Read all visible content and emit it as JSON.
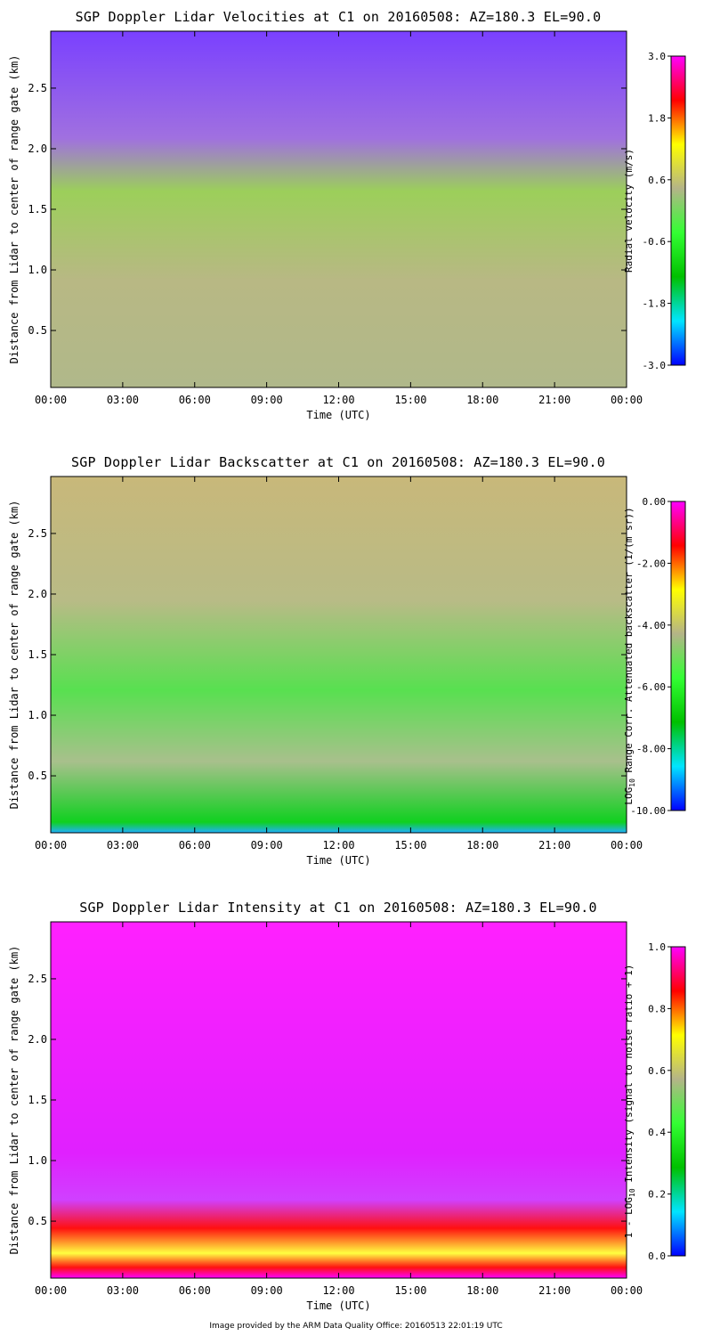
{
  "chart_data": [
    {
      "type": "heatmap",
      "title": "SGP Doppler Lidar Velocities at C1 on 20160508: AZ=180.3 EL=90.0",
      "xlabel": "Time (UTC)",
      "ylabel": "Distance from Lidar to center of range gate (km)",
      "xticks": [
        "00:00",
        "03:00",
        "06:00",
        "09:00",
        "12:00",
        "15:00",
        "18:00",
        "21:00",
        "00:00"
      ],
      "xlim": [
        0,
        24
      ],
      "yticks": [
        0.5,
        1.0,
        1.5,
        2.0,
        2.5
      ],
      "ytick_labels": [
        "0.5",
        "1.0",
        "1.5",
        "2.0",
        "2.5"
      ],
      "ylim": [
        0.03,
        2.97
      ],
      "colorbar": {
        "label": "Radial velocity (m/s)",
        "range": [
          -3.0,
          3.0
        ],
        "ticks": [
          -3.0,
          -1.8,
          -0.6,
          0.6,
          1.8,
          3.0
        ],
        "tick_labels": [
          "-3.0",
          "-1.8",
          "-0.6",
          "0.6",
          "1.8",
          "3.0"
        ]
      }
    },
    {
      "type": "heatmap",
      "title": "SGP Doppler Lidar Backscatter at C1 on 20160508: AZ=180.3 EL=90.0",
      "xlabel": "Time (UTC)",
      "ylabel": "Distance from Lidar to center of range gate (km)",
      "xticks": [
        "00:00",
        "03:00",
        "06:00",
        "09:00",
        "12:00",
        "15:00",
        "18:00",
        "21:00",
        "00:00"
      ],
      "xlim": [
        0,
        24
      ],
      "yticks": [
        0.5,
        1.0,
        1.5,
        2.0,
        2.5
      ],
      "ytick_labels": [
        "0.5",
        "1.0",
        "1.5",
        "2.0",
        "2.5"
      ],
      "ylim": [
        0.03,
        2.97
      ],
      "colorbar": {
        "label_pre": "LOG",
        "label_sub": "10",
        "label_post": " Range Corr. Attenuated backscatter (1/(m sr))",
        "range": [
          -10.0,
          0.0
        ],
        "ticks": [
          -10.0,
          -8.0,
          -6.0,
          -4.0,
          -2.0,
          0.0
        ],
        "tick_labels": [
          "-10.00",
          "-8.00",
          "-6.00",
          "-4.00",
          "-2.00",
          "0.00"
        ]
      }
    },
    {
      "type": "heatmap",
      "title": "SGP Doppler Lidar Intensity at C1 on 20160508: AZ=180.3 EL=90.0",
      "xlabel": "Time (UTC)",
      "ylabel": "Distance from Lidar to center of range gate (km)",
      "xticks": [
        "00:00",
        "03:00",
        "06:00",
        "09:00",
        "12:00",
        "15:00",
        "18:00",
        "21:00",
        "00:00"
      ],
      "xlim": [
        0,
        24
      ],
      "yticks": [
        0.5,
        1.0,
        1.5,
        2.0,
        2.5
      ],
      "ytick_labels": [
        "0.5",
        "1.0",
        "1.5",
        "2.0",
        "2.5"
      ],
      "ylim": [
        0.03,
        2.97
      ],
      "colorbar": {
        "label_pre": "1 - LOG",
        "label_sub": "10",
        "label_post": " Intensity (signal to noise ratio + 1)",
        "range": [
          0.0,
          1.0
        ],
        "ticks": [
          0.0,
          0.2,
          0.4,
          0.6,
          0.8,
          1.0
        ],
        "tick_labels": [
          "0.0",
          "0.2",
          "0.4",
          "0.6",
          "0.8",
          "1.0"
        ]
      }
    }
  ],
  "footer": "Image provided by the ARM Data Quality Office: 20160513 22:01:19 UTC",
  "colormap": [
    "#0000ff",
    "#00e5ff",
    "#00c000",
    "#33ff33",
    "#b4b488",
    "#ffff00",
    "#ff0000",
    "#ff00ff"
  ]
}
